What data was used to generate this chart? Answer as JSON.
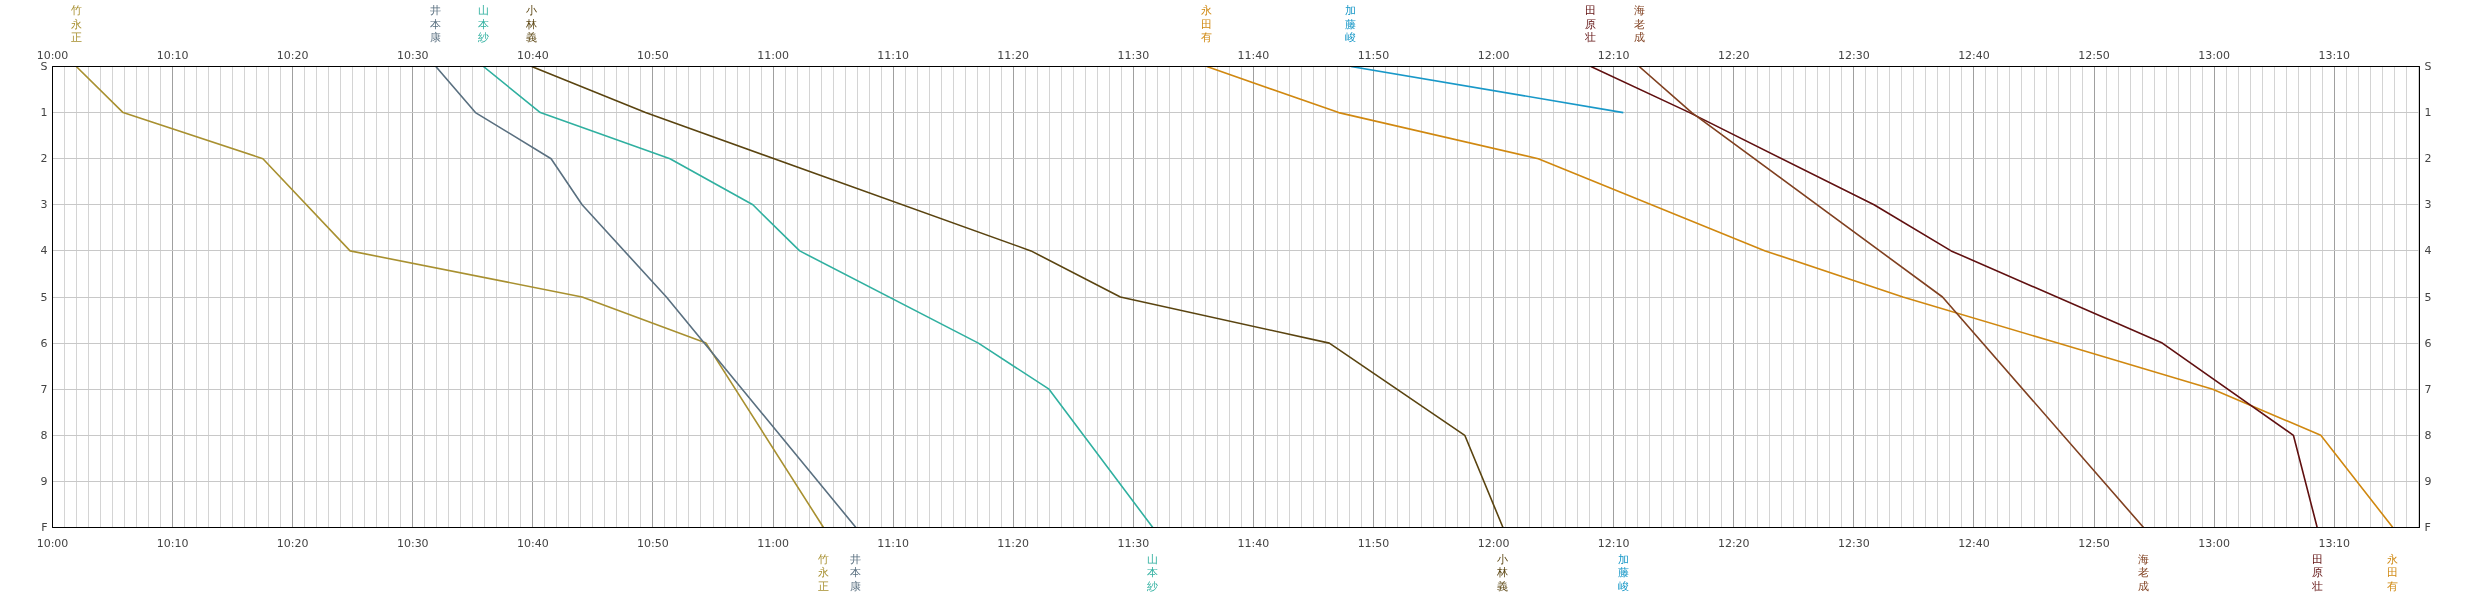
{
  "chart_data": {
    "type": "line",
    "grid": true,
    "line_style": "solid",
    "xlim": [
      10,
      13.285
    ],
    "ylim": [
      10,
      0
    ],
    "y2lim": [
      10,
      0
    ],
    "xticks": [
      {
        "value": 10,
        "label": "10:00"
      },
      {
        "value": 10.1667,
        "label": "10:10"
      },
      {
        "value": 10.3333,
        "label": "10:20"
      },
      {
        "value": 10.5,
        "label": "10:30"
      },
      {
        "value": 10.6667,
        "label": "10:40"
      },
      {
        "value": 10.8333,
        "label": "10:50"
      },
      {
        "value": 11,
        "label": "11:00"
      },
      {
        "value": 11.1667,
        "label": "11:10"
      },
      {
        "value": 11.3333,
        "label": "11:20"
      },
      {
        "value": 11.5,
        "label": "11:30"
      },
      {
        "value": 11.6667,
        "label": "11:40"
      },
      {
        "value": 11.8333,
        "label": "11:50"
      },
      {
        "value": 12,
        "label": "12:00"
      },
      {
        "value": 12.1667,
        "label": "12:10"
      },
      {
        "value": 12.3333,
        "label": "12:20"
      },
      {
        "value": 12.5,
        "label": "12:30"
      },
      {
        "value": 12.6667,
        "label": "12:40"
      },
      {
        "value": 12.8333,
        "label": "12:50"
      },
      {
        "value": 13,
        "label": "13:00"
      },
      {
        "value": 13.1667,
        "label": "13:10"
      }
    ],
    "x2lim": [
      10,
      13.285
    ],
    "x2ticks": [
      {
        "value": 10,
        "label": "10:00"
      },
      {
        "value": 10.1667,
        "label": "10:10"
      },
      {
        "value": 10.3333,
        "label": "10:20"
      },
      {
        "value": 10.5,
        "label": "10:30"
      },
      {
        "value": 10.6667,
        "label": "10:40"
      },
      {
        "value": 10.8333,
        "label": "10:50"
      },
      {
        "value": 11,
        "label": "11:00"
      },
      {
        "value": 11.1667,
        "label": "11:10"
      },
      {
        "value": 11.3333,
        "label": "11:20"
      },
      {
        "value": 11.5,
        "label": "11:30"
      },
      {
        "value": 11.6667,
        "label": "11:40"
      },
      {
        "value": 11.8333,
        "label": "11:50"
      },
      {
        "value": 12,
        "label": "12:00"
      },
      {
        "value": 12.1667,
        "label": "12:10"
      },
      {
        "value": 12.3333,
        "label": "12:20"
      },
      {
        "value": 12.5,
        "label": "12:30"
      },
      {
        "value": 12.6667,
        "label": "12:40"
      },
      {
        "value": 12.8333,
        "label": "12:50"
      },
      {
        "value": 13,
        "label": "13:00"
      },
      {
        "value": 13.1667,
        "label": "13:10"
      }
    ],
    "yticks": [
      {
        "value": 0,
        "label": "S"
      },
      1,
      2,
      3,
      4,
      5,
      6,
      7,
      8,
      9,
      {
        "value": 10,
        "label": "F"
      }
    ],
    "y2ticks": [
      {
        "value": 0,
        "label": "S"
      },
      1,
      2,
      3,
      4,
      5,
      6,
      7,
      8,
      9,
      {
        "value": 10,
        "label": "F"
      }
    ],
    "series": [
      {
        "name": "竹永正",
        "color": "#a89030",
        "x": [
          10.033,
          10.098,
          10.292,
          10.413,
          10.735,
          10.907,
          11.07
        ],
        "values": [
          0,
          1,
          2,
          4,
          5,
          6,
          10
        ]
      },
      {
        "name": "井本康",
        "color": "#5a7080",
        "x": [
          10.532,
          10.587,
          10.692,
          10.735,
          10.852,
          11.115
        ],
        "values": [
          0,
          1,
          2,
          3,
          5,
          10
        ]
      },
      {
        "name": "山本紗",
        "color": "#30b0a0",
        "x": [
          10.598,
          10.677,
          10.857,
          10.972,
          11.037,
          11.285,
          11.383,
          11.527
        ],
        "values": [
          0,
          1,
          2,
          3,
          4,
          6,
          7,
          10
        ]
      },
      {
        "name": "小林義",
        "color": "#5a4410",
        "x": [
          10.665,
          10.823,
          11.358,
          11.482,
          11.772,
          11.96,
          12.013
        ],
        "values": [
          0,
          1,
          4,
          5,
          6,
          8,
          10
        ]
      },
      {
        "name": "永田有",
        "color": "#d08810",
        "x": [
          11.602,
          11.785,
          12.062,
          12.377,
          12.568,
          12.783,
          12.998,
          13.148,
          13.248
        ],
        "values": [
          0,
          1,
          2,
          4,
          5,
          6,
          7,
          8,
          10
        ]
      },
      {
        "name": "加藤峻",
        "color": "#1898c8",
        "x": [
          11.802,
          12.18
        ],
        "values": [
          0,
          1
        ]
      },
      {
        "name": "田原壮",
        "color": "#601010",
        "x": [
          12.135,
          12.272,
          12.528,
          12.635,
          12.928,
          13.11,
          13.143
        ],
        "values": [
          0,
          1,
          3,
          4,
          6,
          8,
          10
        ]
      },
      {
        "name": "海老成",
        "color": "#804020",
        "x": [
          12.202,
          12.275,
          12.623,
          12.902
        ],
        "values": [
          0,
          1,
          5,
          10
        ]
      }
    ]
  }
}
